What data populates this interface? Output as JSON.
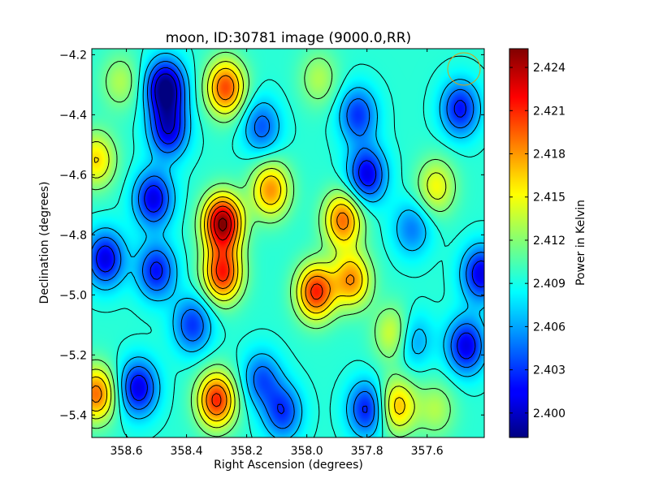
{
  "chart_data": {
    "type": "heatmap",
    "title": "moon, ID:30781 image (9000.0,RR)",
    "xlabel": "Right Ascension (degrees)",
    "ylabel": "Declination (degrees)",
    "colorbar_label": "Power in Kelvin",
    "xlim": [
      358.715,
      357.41
    ],
    "ylim": [
      -5.475,
      -4.18
    ],
    "x_ticks": [
      358.6,
      358.4,
      358.2,
      358.0,
      357.8,
      357.6
    ],
    "x_tick_labels": [
      "358.6",
      "358.4",
      "358.2",
      "358.0",
      "357.8",
      "357.6"
    ],
    "y_ticks": [
      -4.2,
      -4.4,
      -4.6,
      -4.8,
      -5.0,
      -5.2,
      -5.4
    ],
    "y_tick_labels": [
      "−4.2",
      "−4.4",
      "−4.6",
      "−4.8",
      "−5.0",
      "−5.2",
      "−5.4"
    ],
    "colorbar_range": [
      2.3983,
      2.4253
    ],
    "colorbar_ticks": [
      2.4,
      2.403,
      2.406,
      2.409,
      2.412,
      2.415,
      2.418,
      2.421,
      2.424
    ],
    "colorbar_tick_labels": [
      "2.400",
      "2.403",
      "2.406",
      "2.409",
      "2.412",
      "2.415",
      "2.418",
      "2.421",
      "2.424"
    ],
    "colormap": "jet",
    "contour_color": "#000000",
    "beam_circle_color": "#d4a017",
    "features": [
      {
        "kind": "max",
        "x": 358.28,
        "y": -4.76,
        "value": 2.425
      },
      {
        "kind": "max",
        "x": 358.28,
        "y": -4.93,
        "value": 2.421
      },
      {
        "kind": "max",
        "x": 358.3,
        "y": -5.35,
        "value": 2.421
      },
      {
        "kind": "max",
        "x": 358.27,
        "y": -4.31,
        "value": 2.42
      },
      {
        "kind": "max",
        "x": 357.97,
        "y": -4.99,
        "value": 2.421
      },
      {
        "kind": "max",
        "x": 357.88,
        "y": -4.75,
        "value": 2.419
      },
      {
        "kind": "max",
        "x": 358.12,
        "y": -4.65,
        "value": 2.418
      },
      {
        "kind": "max",
        "x": 358.7,
        "y": -5.33,
        "value": 2.419
      },
      {
        "kind": "max",
        "x": 358.7,
        "y": -4.55,
        "value": 2.416
      },
      {
        "kind": "max",
        "x": 357.85,
        "y": -4.95,
        "value": 2.418
      },
      {
        "kind": "max",
        "x": 357.7,
        "y": -5.37,
        "value": 2.417
      },
      {
        "kind": "max",
        "x": 357.71,
        "y": -5.13,
        "value": 2.415
      },
      {
        "kind": "max",
        "x": 357.57,
        "y": -4.64,
        "value": 2.415
      },
      {
        "kind": "max",
        "x": 358.62,
        "y": -4.29,
        "value": 2.413
      },
      {
        "kind": "max",
        "x": 357.96,
        "y": -4.28,
        "value": 2.413
      },
      {
        "kind": "max",
        "x": 357.57,
        "y": -5.38,
        "value": 2.413
      },
      {
        "kind": "min",
        "x": 358.47,
        "y": -4.31,
        "value": 2.398
      },
      {
        "kind": "min",
        "x": 358.46,
        "y": -4.45,
        "value": 2.401
      },
      {
        "kind": "min",
        "x": 358.51,
        "y": -4.68,
        "value": 2.401
      },
      {
        "kind": "min",
        "x": 358.5,
        "y": -4.92,
        "value": 2.402
      },
      {
        "kind": "min",
        "x": 358.67,
        "y": -4.88,
        "value": 2.401
      },
      {
        "kind": "min",
        "x": 358.56,
        "y": -5.31,
        "value": 2.401
      },
      {
        "kind": "min",
        "x": 358.15,
        "y": -4.44,
        "value": 2.404
      },
      {
        "kind": "min",
        "x": 358.08,
        "y": -5.39,
        "value": 2.403
      },
      {
        "kind": "min",
        "x": 358.15,
        "y": -5.28,
        "value": 2.404
      },
      {
        "kind": "min",
        "x": 357.8,
        "y": -4.6,
        "value": 2.401
      },
      {
        "kind": "min",
        "x": 357.8,
        "y": -5.38,
        "value": 2.402
      },
      {
        "kind": "min",
        "x": 357.83,
        "y": -4.4,
        "value": 2.403
      },
      {
        "kind": "min",
        "x": 357.49,
        "y": -4.38,
        "value": 2.402
      },
      {
        "kind": "min",
        "x": 357.42,
        "y": -4.93,
        "value": 2.401
      },
      {
        "kind": "min",
        "x": 357.47,
        "y": -5.17,
        "value": 2.401
      },
      {
        "kind": "min",
        "x": 357.65,
        "y": -4.78,
        "value": 2.405
      },
      {
        "kind": "min",
        "x": 358.38,
        "y": -5.1,
        "value": 2.403
      },
      {
        "kind": "min",
        "x": 357.65,
        "y": -5.15,
        "value": 2.405
      }
    ]
  }
}
